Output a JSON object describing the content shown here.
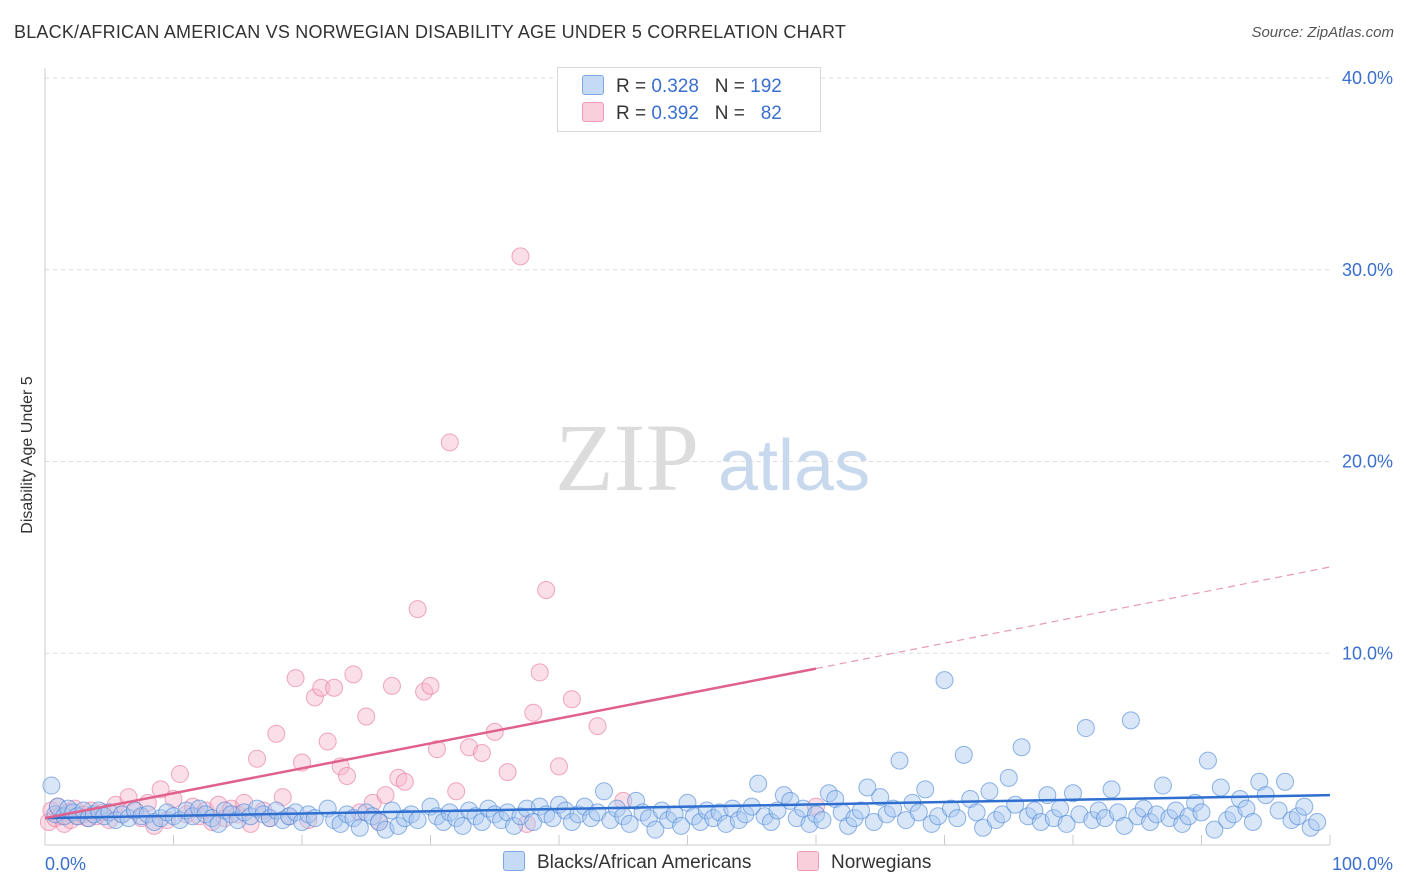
{
  "header": {
    "title": "BLACK/AFRICAN AMERICAN VS NORWEGIAN DISABILITY AGE UNDER 5 CORRELATION CHART",
    "source": "Source: ZipAtlas.com"
  },
  "watermark": {
    "zip": "ZIP",
    "atlas": "atlas"
  },
  "legend": {
    "rows": [
      {
        "r_label": "R =",
        "r_value": "0.328",
        "n_label": "N =",
        "n_value": "192",
        "color": "#a9c7f0"
      },
      {
        "r_label": "R =",
        "r_value": "0.392",
        "n_label": "N =",
        "n_value": "82",
        "color": "#f6b8cb"
      }
    ]
  },
  "bottom_legend": [
    {
      "label": "Blacks/African Americans",
      "color": "#a9c7f0"
    },
    {
      "label": "Norwegians",
      "color": "#f6b8cb"
    }
  ],
  "chart_data": {
    "type": "scatter",
    "title": "BLACK/AFRICAN AMERICAN VS NORWEGIAN DISABILITY AGE UNDER 5 CORRELATION CHART",
    "ylabel": "Disability Age Under 5",
    "xlabel": "",
    "xlim": [
      0,
      100
    ],
    "ylim": [
      0,
      40
    ],
    "x_tick_labels": [
      "0.0%",
      "100.0%"
    ],
    "y_tick_labels": [
      "10.0%",
      "20.0%",
      "30.0%",
      "40.0%"
    ],
    "y_ticks": [
      10,
      20,
      30,
      40
    ],
    "grid": "horizontal dashed",
    "series": [
      {
        "name": "Blacks/African Americans",
        "color": "#4a86d6",
        "fill": "#a9c7f0",
        "trend": {
          "x": [
            0,
            100
          ],
          "y": [
            1.4,
            2.6
          ],
          "dashed_from": null
        },
        "points": [
          [
            0.5,
            3.1
          ],
          [
            0.8,
            1.6
          ],
          [
            1.0,
            2.0
          ],
          [
            1.5,
            1.5
          ],
          [
            1.8,
            1.9
          ],
          [
            2.2,
            1.7
          ],
          [
            2.5,
            1.5
          ],
          [
            3.0,
            1.8
          ],
          [
            3.4,
            1.4
          ],
          [
            3.8,
            1.6
          ],
          [
            4.2,
            1.8
          ],
          [
            4.6,
            1.5
          ],
          [
            5.0,
            1.7
          ],
          [
            5.5,
            1.3
          ],
          [
            6.0,
            1.6
          ],
          [
            6.5,
            1.4
          ],
          [
            7.0,
            1.8
          ],
          [
            7.5,
            1.5
          ],
          [
            8.0,
            1.6
          ],
          [
            8.5,
            1.2
          ],
          [
            9.0,
            1.4
          ],
          [
            9.5,
            1.7
          ],
          [
            10.0,
            1.5
          ],
          [
            10.5,
            1.3
          ],
          [
            11.0,
            1.8
          ],
          [
            11.5,
            1.5
          ],
          [
            12.0,
            1.9
          ],
          [
            12.5,
            1.6
          ],
          [
            13.0,
            1.4
          ],
          [
            13.5,
            1.1
          ],
          [
            14.0,
            1.8
          ],
          [
            14.5,
            1.6
          ],
          [
            15.0,
            1.3
          ],
          [
            15.5,
            1.7
          ],
          [
            16.0,
            1.5
          ],
          [
            16.5,
            1.9
          ],
          [
            17.0,
            1.6
          ],
          [
            17.5,
            1.4
          ],
          [
            18.0,
            1.8
          ],
          [
            18.5,
            1.3
          ],
          [
            19.0,
            1.5
          ],
          [
            19.5,
            1.7
          ],
          [
            20.0,
            1.2
          ],
          [
            20.5,
            1.6
          ],
          [
            21.0,
            1.4
          ],
          [
            22.0,
            1.9
          ],
          [
            22.5,
            1.3
          ],
          [
            23.0,
            1.1
          ],
          [
            23.5,
            1.6
          ],
          [
            24.0,
            1.4
          ],
          [
            24.5,
            0.9
          ],
          [
            25.0,
            1.7
          ],
          [
            25.5,
            1.5
          ],
          [
            26.0,
            1.2
          ],
          [
            26.5,
            0.8
          ],
          [
            27.0,
            1.8
          ],
          [
            27.5,
            1.0
          ],
          [
            28.0,
            1.4
          ],
          [
            28.5,
            1.6
          ],
          [
            29.0,
            1.3
          ],
          [
            30.0,
            2.0
          ],
          [
            30.5,
            1.5
          ],
          [
            31.0,
            1.2
          ],
          [
            31.5,
            1.7
          ],
          [
            32.0,
            1.4
          ],
          [
            32.5,
            1.0
          ],
          [
            33.0,
            1.8
          ],
          [
            33.5,
            1.5
          ],
          [
            34.0,
            1.2
          ],
          [
            34.5,
            1.9
          ],
          [
            35.0,
            1.6
          ],
          [
            35.5,
            1.3
          ],
          [
            36.0,
            1.7
          ],
          [
            36.5,
            1.0
          ],
          [
            37.0,
            1.5
          ],
          [
            37.5,
            1.9
          ],
          [
            38.0,
            1.2
          ],
          [
            38.5,
            2.0
          ],
          [
            39.0,
            1.6
          ],
          [
            39.5,
            1.4
          ],
          [
            40.0,
            2.1
          ],
          [
            40.5,
            1.8
          ],
          [
            41.0,
            1.2
          ],
          [
            41.5,
            1.6
          ],
          [
            42.0,
            2.0
          ],
          [
            42.5,
            1.4
          ],
          [
            43.0,
            1.7
          ],
          [
            43.5,
            2.8
          ],
          [
            44.0,
            1.3
          ],
          [
            44.5,
            1.9
          ],
          [
            45.0,
            1.5
          ],
          [
            45.5,
            1.1
          ],
          [
            46.0,
            2.3
          ],
          [
            46.5,
            1.7
          ],
          [
            47.0,
            1.4
          ],
          [
            47.5,
            0.8
          ],
          [
            48.0,
            1.8
          ],
          [
            48.5,
            1.3
          ],
          [
            49.0,
            1.6
          ],
          [
            49.5,
            1.0
          ],
          [
            50.0,
            2.2
          ],
          [
            50.5,
            1.5
          ],
          [
            51.0,
            1.2
          ],
          [
            51.5,
            1.8
          ],
          [
            52.0,
            1.4
          ],
          [
            52.5,
            1.7
          ],
          [
            53.0,
            1.1
          ],
          [
            53.5,
            1.9
          ],
          [
            54.0,
            1.3
          ],
          [
            54.5,
            1.6
          ],
          [
            55.0,
            2.0
          ],
          [
            55.5,
            3.2
          ],
          [
            56.0,
            1.5
          ],
          [
            56.5,
            1.2
          ],
          [
            57.0,
            1.8
          ],
          [
            57.5,
            2.6
          ],
          [
            58.0,
            2.3
          ],
          [
            58.5,
            1.4
          ],
          [
            59.0,
            1.9
          ],
          [
            59.5,
            1.1
          ],
          [
            60.0,
            1.6
          ],
          [
            60.5,
            1.3
          ],
          [
            61.0,
            2.7
          ],
          [
            61.5,
            2.4
          ],
          [
            62.0,
            1.7
          ],
          [
            62.5,
            1.0
          ],
          [
            63.0,
            1.4
          ],
          [
            63.5,
            1.8
          ],
          [
            64.0,
            3.0
          ],
          [
            64.5,
            1.2
          ],
          [
            65.0,
            2.5
          ],
          [
            65.5,
            1.6
          ],
          [
            66.0,
            1.9
          ],
          [
            66.5,
            4.4
          ],
          [
            67.0,
            1.3
          ],
          [
            67.5,
            2.2
          ],
          [
            68.0,
            1.7
          ],
          [
            68.5,
            2.9
          ],
          [
            69.0,
            1.1
          ],
          [
            69.5,
            1.5
          ],
          [
            70.0,
            8.6
          ],
          [
            70.5,
            1.9
          ],
          [
            71.0,
            1.4
          ],
          [
            71.5,
            4.7
          ],
          [
            72.0,
            2.4
          ],
          [
            72.5,
            1.7
          ],
          [
            73.0,
            0.9
          ],
          [
            73.5,
            2.8
          ],
          [
            74.0,
            1.3
          ],
          [
            74.5,
            1.6
          ],
          [
            75.0,
            3.5
          ],
          [
            75.5,
            2.1
          ],
          [
            76.0,
            5.1
          ],
          [
            76.5,
            1.5
          ],
          [
            77.0,
            1.8
          ],
          [
            77.5,
            1.2
          ],
          [
            78.0,
            2.6
          ],
          [
            78.5,
            1.4
          ],
          [
            79.0,
            1.9
          ],
          [
            79.5,
            1.1
          ],
          [
            80.0,
            2.7
          ],
          [
            80.5,
            1.6
          ],
          [
            81.0,
            6.1
          ],
          [
            81.5,
            1.3
          ],
          [
            82.0,
            1.8
          ],
          [
            82.5,
            1.4
          ],
          [
            83.0,
            2.9
          ],
          [
            83.5,
            1.7
          ],
          [
            84.0,
            1.0
          ],
          [
            84.5,
            6.5
          ],
          [
            85.0,
            1.5
          ],
          [
            85.5,
            1.9
          ],
          [
            86.0,
            1.2
          ],
          [
            86.5,
            1.6
          ],
          [
            87.0,
            3.1
          ],
          [
            87.5,
            1.4
          ],
          [
            88.0,
            1.8
          ],
          [
            88.5,
            1.1
          ],
          [
            89.0,
            1.5
          ],
          [
            89.5,
            2.2
          ],
          [
            90.0,
            1.7
          ],
          [
            90.5,
            4.4
          ],
          [
            91.0,
            0.8
          ],
          [
            91.5,
            3.0
          ],
          [
            92.0,
            1.3
          ],
          [
            92.5,
            1.6
          ],
          [
            93.0,
            2.4
          ],
          [
            93.5,
            1.9
          ],
          [
            94.0,
            1.2
          ],
          [
            94.5,
            3.3
          ],
          [
            95.0,
            2.6
          ],
          [
            96.0,
            1.8
          ],
          [
            96.5,
            3.3
          ],
          [
            97.0,
            1.3
          ],
          [
            97.5,
            1.5
          ],
          [
            98.0,
            2.0
          ],
          [
            98.5,
            0.9
          ],
          [
            99.0,
            1.2
          ]
        ]
      },
      {
        "name": "Norwegians",
        "color": "#e8719a",
        "fill": "#f6b8cb",
        "trend": {
          "x": [
            0,
            60
          ],
          "y": [
            1.4,
            9.2
          ],
          "dashed_extension": {
            "x": [
              60,
              100
            ],
            "y": [
              9.2,
              14.5
            ]
          }
        },
        "points": [
          [
            0.3,
            1.2
          ],
          [
            0.5,
            1.8
          ],
          [
            0.8,
            1.4
          ],
          [
            1.0,
            2.0
          ],
          [
            1.2,
            1.5
          ],
          [
            1.5,
            1.1
          ],
          [
            1.8,
            1.7
          ],
          [
            2.0,
            1.3
          ],
          [
            2.3,
            1.9
          ],
          [
            2.6,
            1.5
          ],
          [
            3.0,
            1.6
          ],
          [
            3.3,
            1.4
          ],
          [
            3.6,
            1.8
          ],
          [
            4.0,
            1.5
          ],
          [
            4.5,
            1.7
          ],
          [
            5.0,
            1.3
          ],
          [
            5.5,
            2.1
          ],
          [
            6.0,
            1.6
          ],
          [
            6.5,
            2.5
          ],
          [
            7.0,
            1.8
          ],
          [
            7.5,
            1.4
          ],
          [
            8.0,
            2.2
          ],
          [
            8.5,
            1.0
          ],
          [
            9.0,
            2.9
          ],
          [
            9.5,
            1.3
          ],
          [
            10.0,
            2.4
          ],
          [
            10.5,
            3.7
          ],
          [
            11.0,
            1.6
          ],
          [
            11.5,
            2.0
          ],
          [
            12.0,
            1.5
          ],
          [
            12.5,
            1.8
          ],
          [
            13.0,
            1.2
          ],
          [
            13.5,
            2.1
          ],
          [
            14.0,
            1.4
          ],
          [
            14.5,
            1.9
          ],
          [
            15.0,
            1.6
          ],
          [
            15.5,
            2.2
          ],
          [
            16.0,
            1.1
          ],
          [
            16.5,
            4.5
          ],
          [
            17.0,
            1.8
          ],
          [
            17.5,
            1.4
          ],
          [
            18.0,
            5.8
          ],
          [
            18.5,
            2.5
          ],
          [
            19.0,
            1.5
          ],
          [
            19.5,
            8.7
          ],
          [
            20.0,
            4.3
          ],
          [
            20.5,
            1.3
          ],
          [
            21.0,
            7.7
          ],
          [
            21.5,
            8.2
          ],
          [
            22.0,
            5.4
          ],
          [
            22.5,
            8.2
          ],
          [
            23.0,
            4.1
          ],
          [
            23.5,
            3.6
          ],
          [
            24.0,
            8.9
          ],
          [
            24.5,
            1.7
          ],
          [
            25.0,
            6.7
          ],
          [
            25.5,
            2.2
          ],
          [
            26.0,
            1.2
          ],
          [
            26.5,
            2.6
          ],
          [
            27.0,
            8.3
          ],
          [
            27.5,
            3.5
          ],
          [
            28.0,
            3.3
          ],
          [
            29.0,
            12.3
          ],
          [
            29.5,
            8.0
          ],
          [
            30.0,
            8.3
          ],
          [
            30.5,
            5.0
          ],
          [
            31.5,
            21.0
          ],
          [
            32.0,
            2.8
          ],
          [
            33.0,
            5.1
          ],
          [
            34.0,
            4.8
          ],
          [
            35.0,
            5.9
          ],
          [
            36.0,
            3.8
          ],
          [
            37.0,
            30.7
          ],
          [
            37.5,
            1.1
          ],
          [
            38.0,
            6.9
          ],
          [
            38.5,
            9.0
          ],
          [
            39.0,
            13.3
          ],
          [
            40.0,
            4.1
          ],
          [
            41.0,
            7.6
          ],
          [
            43.0,
            6.2
          ],
          [
            45.0,
            2.3
          ],
          [
            60.0,
            2.0
          ]
        ]
      }
    ]
  }
}
